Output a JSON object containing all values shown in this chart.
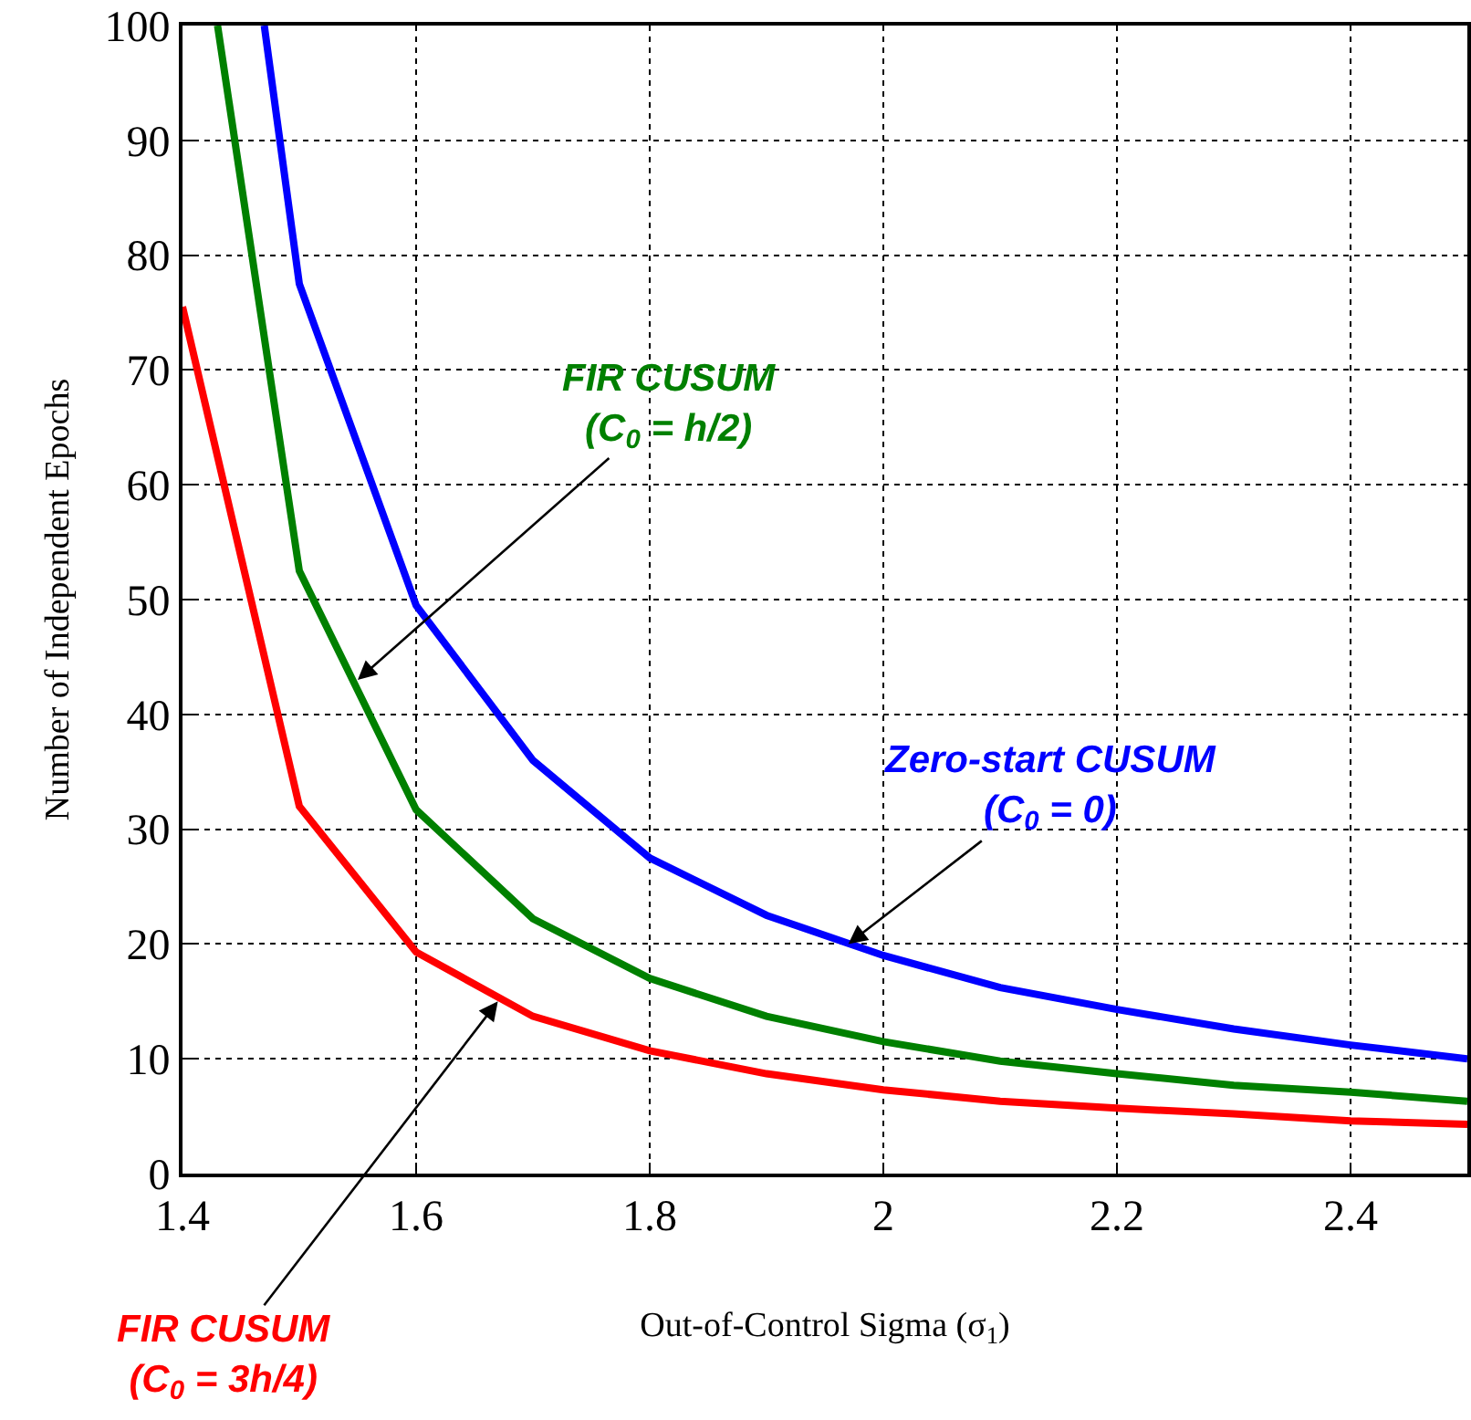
{
  "chart_data": {
    "type": "line",
    "xlabel": "Out-of-Control Sigma (σ$_{1}$)",
    "ylabel": "Number of Independent Epochs",
    "xlim": [
      1.4,
      2.5
    ],
    "xticks": [
      1.4,
      1.6,
      1.8,
      2,
      2.2,
      2.4
    ],
    "ylim": [
      0,
      100
    ],
    "yticks": [
      0,
      10,
      20,
      30,
      40,
      50,
      60,
      70,
      80,
      90,
      100
    ],
    "grid": true,
    "marker": "none",
    "line_style": "solid",
    "series": [
      {
        "color": "#0000ff",
        "x": [
          1.47,
          1.5,
          1.6,
          1.7,
          1.8,
          1.9,
          2.0,
          2.1,
          2.2,
          2.3,
          2.4,
          2.5
        ],
        "values": [
          100,
          77.5,
          49.5,
          36,
          27.5,
          22.5,
          19,
          16.2,
          14.3,
          12.6,
          11.2,
          10
        ]
      },
      {
        "color": "#008000",
        "x": [
          1.43,
          1.5,
          1.6,
          1.7,
          1.8,
          1.9,
          2.0,
          2.1,
          2.2,
          2.3,
          2.4,
          2.5
        ],
        "values": [
          100,
          52.5,
          31.7,
          22.2,
          17,
          13.7,
          11.5,
          9.8,
          8.7,
          7.7,
          7.1,
          6.3
        ]
      },
      {
        "color": "#ff0000",
        "x": [
          1.4,
          1.5,
          1.6,
          1.7,
          1.8,
          1.9,
          2.0,
          2.1,
          2.2,
          2.3,
          2.4,
          2.5
        ],
        "values": [
          75.5,
          32,
          19.3,
          13.7,
          10.7,
          8.7,
          7.3,
          6.3,
          5.7,
          5.2,
          4.6,
          4.3
        ]
      }
    ],
    "annotations": [
      {
        "text": "Zero-start CUSUM\n(C$_{0}$ = 0)",
        "x": 1.97,
        "y": 20
      },
      {
        "text": "FIR CUSUM\n(C$_{0}$ = h/2)",
        "x": 1.55,
        "y": 43
      },
      {
        "text": "FIR CUSUM\n(C$_{0}$ = 3h/4)",
        "x": 1.67,
        "y": 15
      }
    ]
  }
}
